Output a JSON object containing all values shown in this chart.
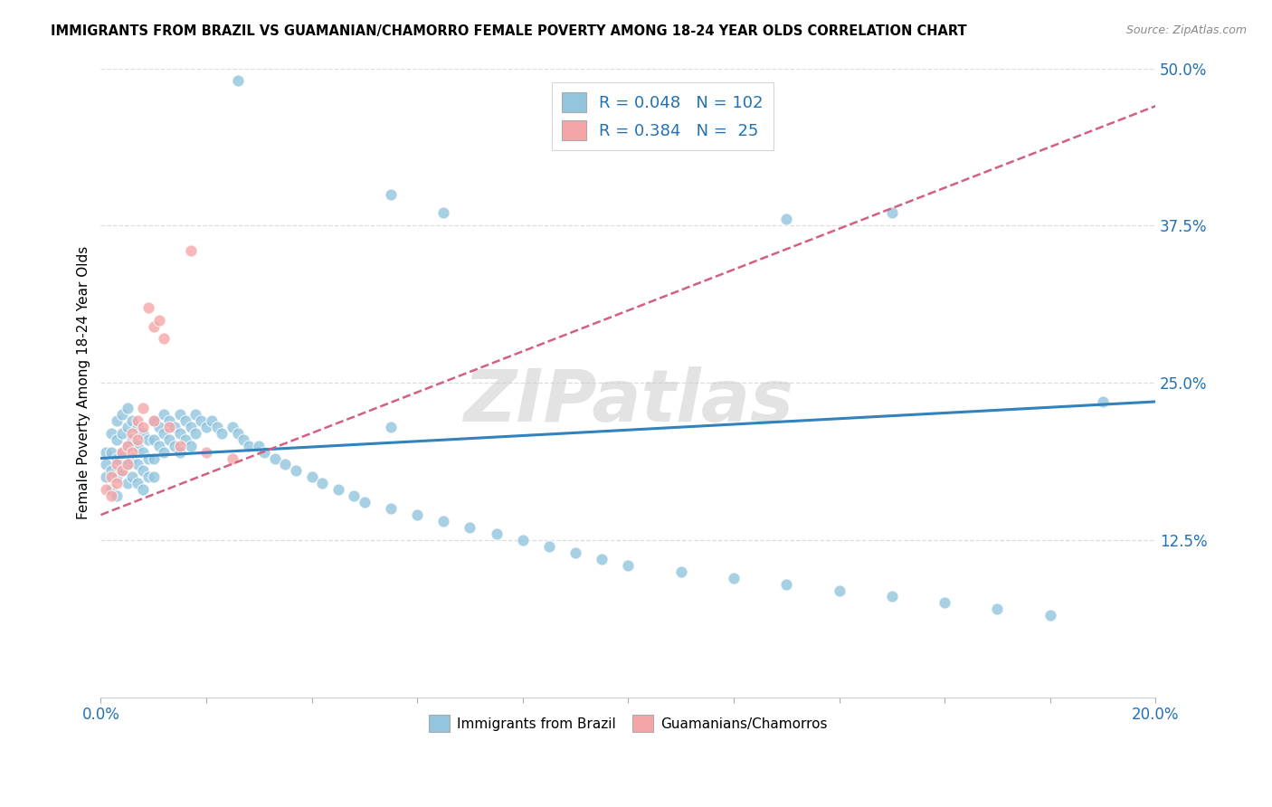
{
  "title": "IMMIGRANTS FROM BRAZIL VS GUAMANIAN/CHAMORRO FEMALE POVERTY AMONG 18-24 YEAR OLDS CORRELATION CHART",
  "source": "Source: ZipAtlas.com",
  "ylabel": "Female Poverty Among 18-24 Year Olds",
  "legend_blue_R": "0.048",
  "legend_blue_N": "102",
  "legend_pink_R": "0.384",
  "legend_pink_N": "25",
  "legend_label_blue": "Immigrants from Brazil",
  "legend_label_pink": "Guamanians/Chamorros",
  "blue_color": "#92c5de",
  "pink_color": "#f4a6a6",
  "blue_line_color": "#3182bd",
  "pink_line_color": "#d46080",
  "watermark": "ZIPatlas",
  "xlim": [
    0.0,
    0.2
  ],
  "ylim": [
    0.0,
    0.5
  ],
  "ytick_vals": [
    0.125,
    0.25,
    0.375,
    0.5
  ],
  "blue_x": [
    0.001,
    0.001,
    0.001,
    0.002,
    0.002,
    0.002,
    0.002,
    0.003,
    0.003,
    0.003,
    0.003,
    0.003,
    0.004,
    0.004,
    0.004,
    0.004,
    0.005,
    0.005,
    0.005,
    0.005,
    0.005,
    0.006,
    0.006,
    0.006,
    0.006,
    0.007,
    0.007,
    0.007,
    0.007,
    0.008,
    0.008,
    0.008,
    0.008,
    0.009,
    0.009,
    0.009,
    0.01,
    0.01,
    0.01,
    0.01,
    0.011,
    0.011,
    0.012,
    0.012,
    0.012,
    0.013,
    0.013,
    0.014,
    0.014,
    0.015,
    0.015,
    0.015,
    0.016,
    0.016,
    0.017,
    0.017,
    0.018,
    0.018,
    0.019,
    0.02,
    0.021,
    0.022,
    0.023,
    0.025,
    0.026,
    0.027,
    0.028,
    0.03,
    0.031,
    0.033,
    0.035,
    0.037,
    0.04,
    0.042,
    0.045,
    0.048,
    0.05,
    0.055,
    0.06,
    0.065,
    0.07,
    0.075,
    0.08,
    0.085,
    0.09,
    0.095,
    0.1,
    0.11,
    0.12,
    0.13,
    0.14,
    0.15,
    0.16,
    0.17,
    0.18,
    0.19,
    0.026,
    0.055,
    0.065,
    0.13,
    0.15,
    0.055
  ],
  "blue_y": [
    0.195,
    0.185,
    0.175,
    0.21,
    0.195,
    0.18,
    0.165,
    0.22,
    0.205,
    0.19,
    0.175,
    0.16,
    0.225,
    0.21,
    0.195,
    0.18,
    0.23,
    0.215,
    0.2,
    0.185,
    0.17,
    0.22,
    0.205,
    0.19,
    0.175,
    0.215,
    0.2,
    0.185,
    0.17,
    0.21,
    0.195,
    0.18,
    0.165,
    0.205,
    0.19,
    0.175,
    0.22,
    0.205,
    0.19,
    0.175,
    0.215,
    0.2,
    0.225,
    0.21,
    0.195,
    0.22,
    0.205,
    0.215,
    0.2,
    0.225,
    0.21,
    0.195,
    0.22,
    0.205,
    0.215,
    0.2,
    0.225,
    0.21,
    0.22,
    0.215,
    0.22,
    0.215,
    0.21,
    0.215,
    0.21,
    0.205,
    0.2,
    0.2,
    0.195,
    0.19,
    0.185,
    0.18,
    0.175,
    0.17,
    0.165,
    0.16,
    0.155,
    0.15,
    0.145,
    0.14,
    0.135,
    0.13,
    0.125,
    0.12,
    0.115,
    0.11,
    0.105,
    0.1,
    0.095,
    0.09,
    0.085,
    0.08,
    0.075,
    0.07,
    0.065,
    0.235,
    0.49,
    0.4,
    0.385,
    0.38,
    0.385,
    0.215
  ],
  "pink_x": [
    0.001,
    0.002,
    0.002,
    0.003,
    0.003,
    0.004,
    0.004,
    0.005,
    0.005,
    0.006,
    0.006,
    0.007,
    0.007,
    0.008,
    0.008,
    0.009,
    0.01,
    0.01,
    0.011,
    0.012,
    0.013,
    0.015,
    0.017,
    0.02,
    0.025
  ],
  "pink_y": [
    0.165,
    0.175,
    0.16,
    0.185,
    0.17,
    0.195,
    0.18,
    0.2,
    0.185,
    0.21,
    0.195,
    0.22,
    0.205,
    0.23,
    0.215,
    0.31,
    0.295,
    0.22,
    0.3,
    0.285,
    0.215,
    0.2,
    0.355,
    0.195,
    0.19
  ]
}
